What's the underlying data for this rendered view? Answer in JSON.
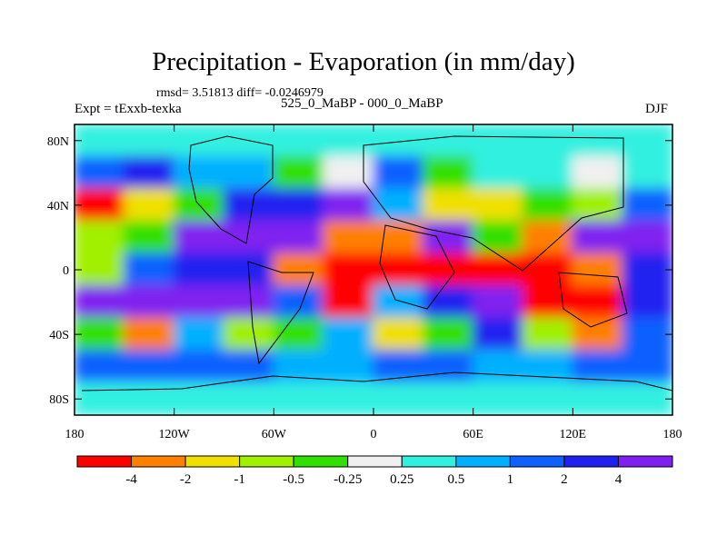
{
  "figure": {
    "title": "Precipitation - Evaporation (in mm/day)",
    "stats": "rmsd= 3.51813 diff= -0.0246979",
    "experiment": "Expt = tExxb-texka",
    "subtitle": "525_0_MaBP - 000_0_MaBP",
    "season": "DJF"
  },
  "chart_data": {
    "type": "heatmap",
    "title": "Precipitation - Evaporation (in mm/day)",
    "variable": "P - E difference",
    "units": "mm/day",
    "x_axis": {
      "range": [
        -180,
        180
      ],
      "ticks": [
        -180,
        -120,
        -60,
        0,
        60,
        120,
        180
      ],
      "tick_labels": [
        "180",
        "120W",
        "60W",
        "0",
        "60E",
        "120E",
        "180"
      ]
    },
    "y_axis": {
      "range": [
        -90,
        90
      ],
      "ticks": [
        80,
        40,
        0,
        -40,
        -80
      ],
      "tick_labels": [
        "80N",
        "40N",
        "0",
        "40S",
        "80S"
      ]
    },
    "colorbar": {
      "colors": [
        "#ff0000",
        "#ff8000",
        "#f0e000",
        "#a0f000",
        "#30e000",
        "#f0f0f0",
        "#30f0e0",
        "#00b0ff",
        "#1060ff",
        "#2020f0",
        "#8020f0"
      ],
      "labels": [
        "-4",
        "-2",
        "-1",
        "-0.5",
        "-0.25",
        "0.25",
        "0.5",
        "1",
        "2",
        "4"
      ]
    },
    "grid": {
      "lon_step": 30,
      "lat_step": 20,
      "rows_north_to_south": [
        [
          6,
          6,
          6,
          6,
          6,
          6,
          6,
          6,
          6,
          6,
          6,
          6
        ],
        [
          8,
          9,
          7,
          7,
          4,
          5,
          8,
          4,
          6,
          6,
          5,
          6
        ],
        [
          0,
          2,
          4,
          9,
          9,
          10,
          7,
          2,
          2,
          4,
          3,
          8
        ],
        [
          3,
          4,
          10,
          10,
          10,
          1,
          1,
          10,
          4,
          1,
          10,
          10
        ],
        [
          3,
          8,
          9,
          9,
          1,
          0,
          0,
          0,
          0,
          0,
          1,
          9
        ],
        [
          10,
          10,
          10,
          10,
          8,
          0,
          7,
          9,
          10,
          0,
          0,
          9
        ],
        [
          4,
          1,
          7,
          3,
          4,
          7,
          2,
          4,
          9,
          3,
          1,
          8
        ],
        [
          8,
          8,
          8,
          8,
          7,
          7,
          8,
          8,
          7,
          7,
          8,
          8
        ],
        [
          6,
          6,
          6,
          6,
          6,
          6,
          6,
          6,
          6,
          6,
          6,
          6
        ]
      ]
    }
  }
}
